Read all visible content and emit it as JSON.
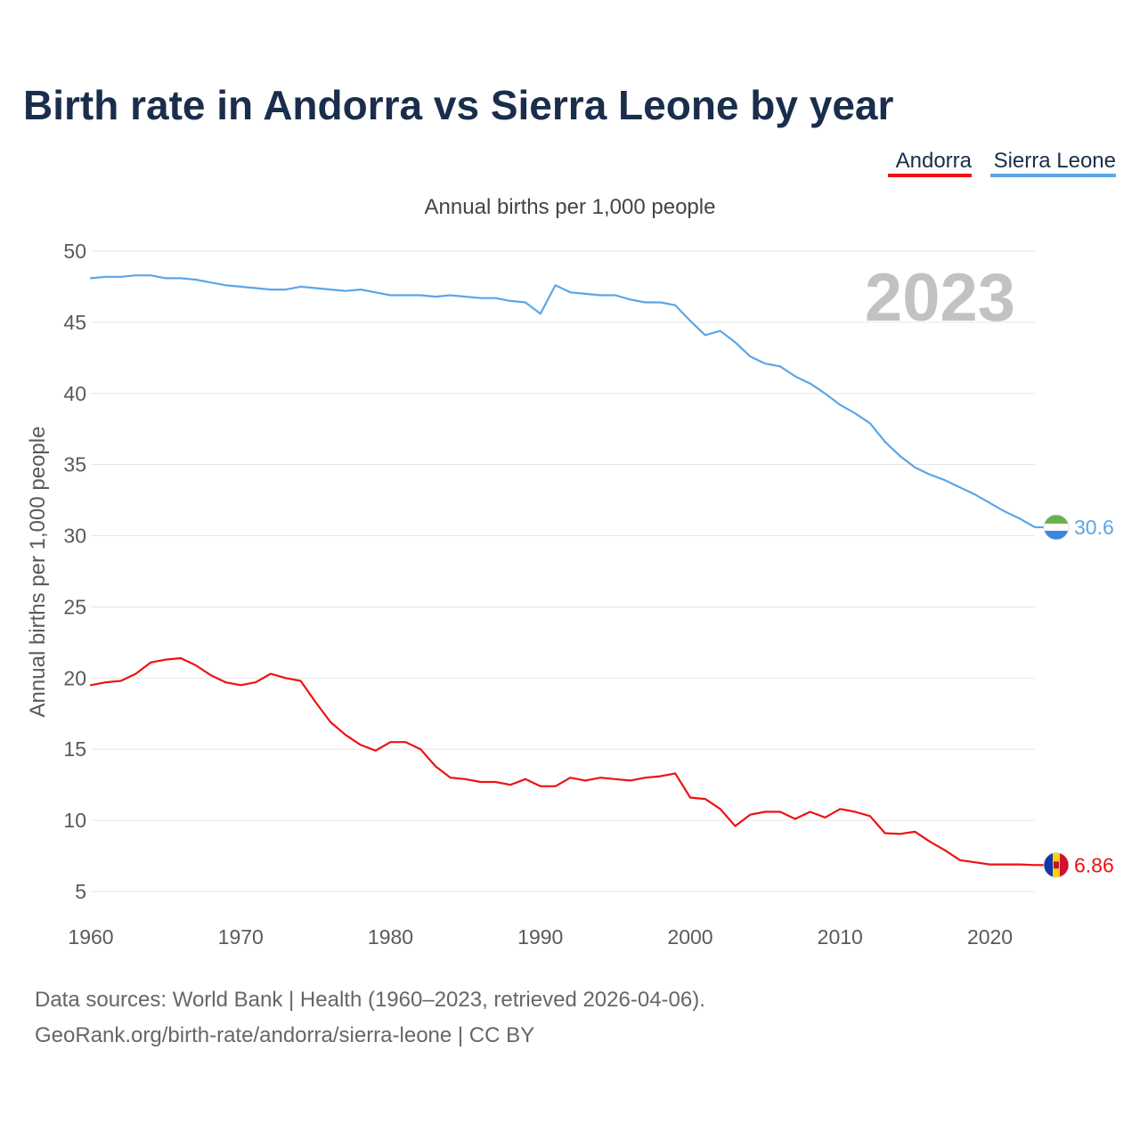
{
  "chart_data": {
    "type": "line",
    "title": "Birth rate in Andorra vs Sierra Leone by year",
    "subtitle": "Annual births per 1,000 people",
    "ylabel": "Annual births per 1,000 people",
    "xlabel": "",
    "year_label": "2023",
    "xlim": [
      1960,
      2023
    ],
    "ylim": [
      5,
      50
    ],
    "x_ticks": [
      1960,
      1970,
      1980,
      1990,
      2000,
      2010,
      2020
    ],
    "y_ticks": [
      5,
      10,
      15,
      20,
      25,
      30,
      35,
      40,
      45,
      50
    ],
    "grid": true,
    "legend_position": "top-right",
    "x": [
      1960,
      1961,
      1962,
      1963,
      1964,
      1965,
      1966,
      1967,
      1968,
      1969,
      1970,
      1971,
      1972,
      1973,
      1974,
      1975,
      1976,
      1977,
      1978,
      1979,
      1980,
      1981,
      1982,
      1983,
      1984,
      1985,
      1986,
      1987,
      1988,
      1989,
      1990,
      1991,
      1992,
      1993,
      1994,
      1995,
      1996,
      1997,
      1998,
      1999,
      2000,
      2001,
      2002,
      2003,
      2004,
      2005,
      2006,
      2007,
      2008,
      2009,
      2010,
      2011,
      2012,
      2013,
      2014,
      2015,
      2016,
      2017,
      2018,
      2019,
      2020,
      2021,
      2022,
      2023
    ],
    "series": [
      {
        "name": "Andorra",
        "color": "#ee1111",
        "end_label": "6.86",
        "flag": "andorra-flag",
        "values": [
          19.5,
          19.7,
          19.8,
          20.3,
          21.1,
          21.3,
          21.4,
          20.9,
          20.2,
          19.7,
          19.5,
          19.7,
          20.3,
          20.0,
          19.8,
          18.3,
          16.9,
          16.0,
          15.3,
          14.9,
          15.5,
          15.5,
          15.0,
          13.8,
          13.0,
          12.9,
          12.7,
          12.7,
          12.5,
          12.9,
          12.4,
          12.4,
          13.0,
          12.8,
          13.0,
          12.9,
          12.8,
          13.0,
          13.1,
          13.3,
          11.6,
          11.5,
          10.8,
          9.6,
          10.4,
          10.6,
          10.6,
          10.1,
          10.6,
          10.2,
          10.8,
          10.6,
          10.3,
          9.1,
          9.05,
          9.2,
          8.5,
          7.9,
          7.2,
          7.05,
          6.9,
          6.9,
          6.9,
          6.86
        ]
      },
      {
        "name": "Sierra Leone",
        "color": "#5ba6e8",
        "end_label": "30.6",
        "flag": "sierra-leone-flag",
        "values": [
          48.1,
          48.2,
          48.2,
          48.3,
          48.3,
          48.1,
          48.1,
          48.0,
          47.8,
          47.6,
          47.5,
          47.4,
          47.3,
          47.3,
          47.5,
          47.4,
          47.3,
          47.2,
          47.3,
          47.1,
          46.9,
          46.9,
          46.9,
          46.8,
          46.9,
          46.8,
          46.7,
          46.7,
          46.5,
          46.4,
          45.6,
          47.6,
          47.1,
          47.0,
          46.9,
          46.9,
          46.6,
          46.4,
          46.4,
          46.2,
          45.1,
          44.1,
          44.4,
          43.6,
          42.6,
          42.1,
          41.9,
          41.2,
          40.7,
          40.0,
          39.2,
          38.6,
          37.9,
          36.6,
          35.6,
          34.8,
          34.3,
          33.9,
          33.4,
          32.9,
          32.3,
          31.7,
          31.2,
          30.6
        ]
      }
    ],
    "source_line_1": "Data sources: World Bank | Health (1960–2023, retrieved 2026-04-06).",
    "source_line_2": "GeoRank.org/birth-rate/andorra/sierra-leone | CC BY"
  }
}
